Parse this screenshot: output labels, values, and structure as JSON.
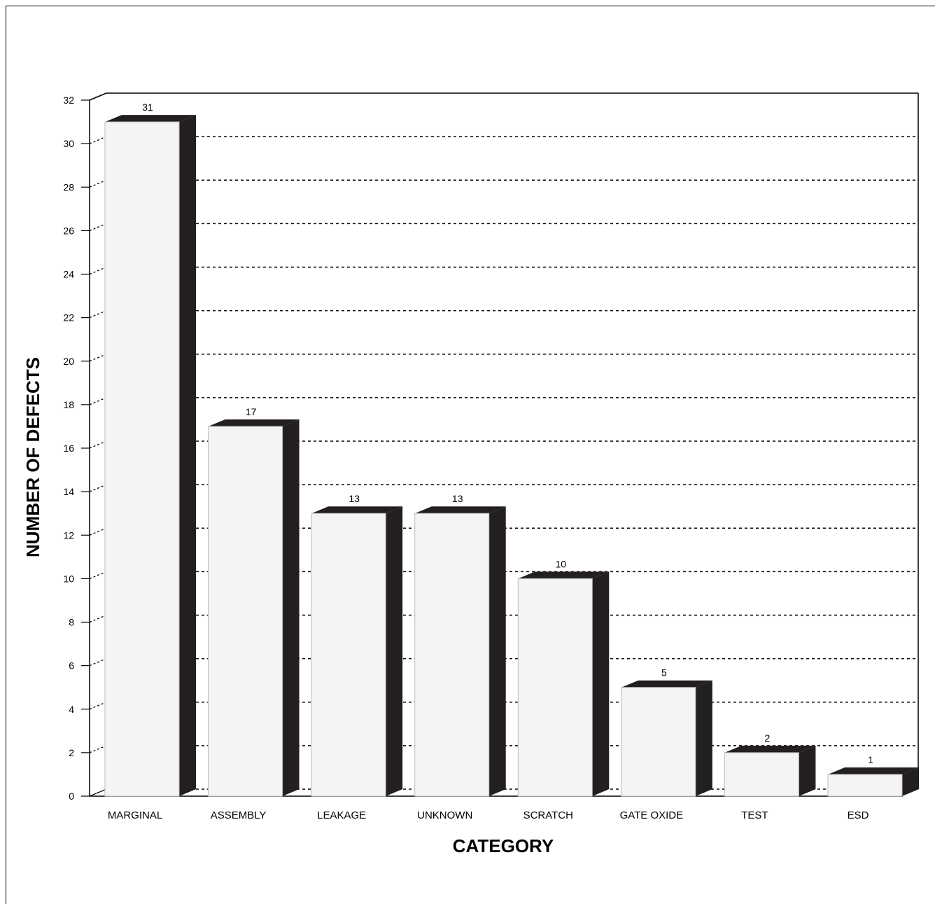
{
  "chart_data": {
    "type": "bar",
    "title": "",
    "xlabel": "CATEGORY",
    "ylabel": "NUMBER OF DEFECTS",
    "categories": [
      "MARGINAL",
      "ASSEMBLY",
      "LEAKAGE",
      "UNKNOWN",
      "SCRATCH",
      "GATE OXIDE",
      "TEST",
      "ESD"
    ],
    "values": [
      31,
      17,
      13,
      13,
      10,
      5,
      2,
      1
    ],
    "ylim": [
      0,
      32
    ],
    "yticks": [
      0,
      2,
      4,
      6,
      8,
      10,
      12,
      14,
      16,
      18,
      20,
      22,
      24,
      26,
      28,
      30,
      32
    ],
    "grid": true,
    "style": "3d",
    "colors": {
      "bar_face": "#f4f4f4",
      "bar_shadow": "#231f20",
      "grid": "#000000"
    }
  }
}
